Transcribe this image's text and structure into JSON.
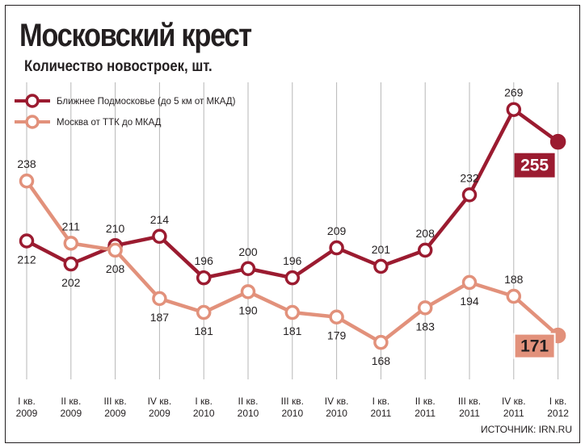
{
  "title": "Московский крест",
  "subtitle": "Количество новостроек, шт.",
  "source": "ИСТОЧНИК: IRN.RU",
  "colors": {
    "near": "#9b1b30",
    "moscow": "#e2917b",
    "grid": "#b7b7b7"
  },
  "chart_data": {
    "type": "line",
    "categories": [
      [
        "I кв.",
        "2009"
      ],
      [
        "II кв.",
        "2009"
      ],
      [
        "III кв.",
        "2009"
      ],
      [
        "IV кв.",
        "2009"
      ],
      [
        "I кв.",
        "2010"
      ],
      [
        "II кв.",
        "2010"
      ],
      [
        "III кв.",
        "2010"
      ],
      [
        "IV кв.",
        "2010"
      ],
      [
        "I кв.",
        "2011"
      ],
      [
        "II кв.",
        "2011"
      ],
      [
        "III кв.",
        "2011"
      ],
      [
        "IV кв.",
        "2011"
      ],
      [
        "I кв.",
        "2012"
      ]
    ],
    "ylim": [
      160,
      278
    ],
    "grid": "vertical",
    "legend_position": "top-left",
    "series": [
      {
        "name": "Ближнее Подмосковье (до 5 км от МКАД)",
        "values": [
          212,
          202,
          210,
          214,
          196,
          200,
          196,
          209,
          201,
          208,
          232,
          269,
          255
        ],
        "label_sides": [
          "below",
          "below",
          "above",
          "above",
          "above",
          "above",
          "above",
          "above",
          "above",
          "above",
          "above",
          "above",
          "none"
        ],
        "last_value_label": "255"
      },
      {
        "name": "Москва от ТТК до МКАД",
        "values": [
          238,
          211,
          208,
          187,
          181,
          190,
          181,
          179,
          168,
          183,
          194,
          188,
          171
        ],
        "label_sides": [
          "above",
          "above",
          "below",
          "below",
          "below",
          "below",
          "below",
          "below",
          "below",
          "below",
          "below",
          "above",
          "none"
        ],
        "last_value_label": "171"
      }
    ]
  }
}
